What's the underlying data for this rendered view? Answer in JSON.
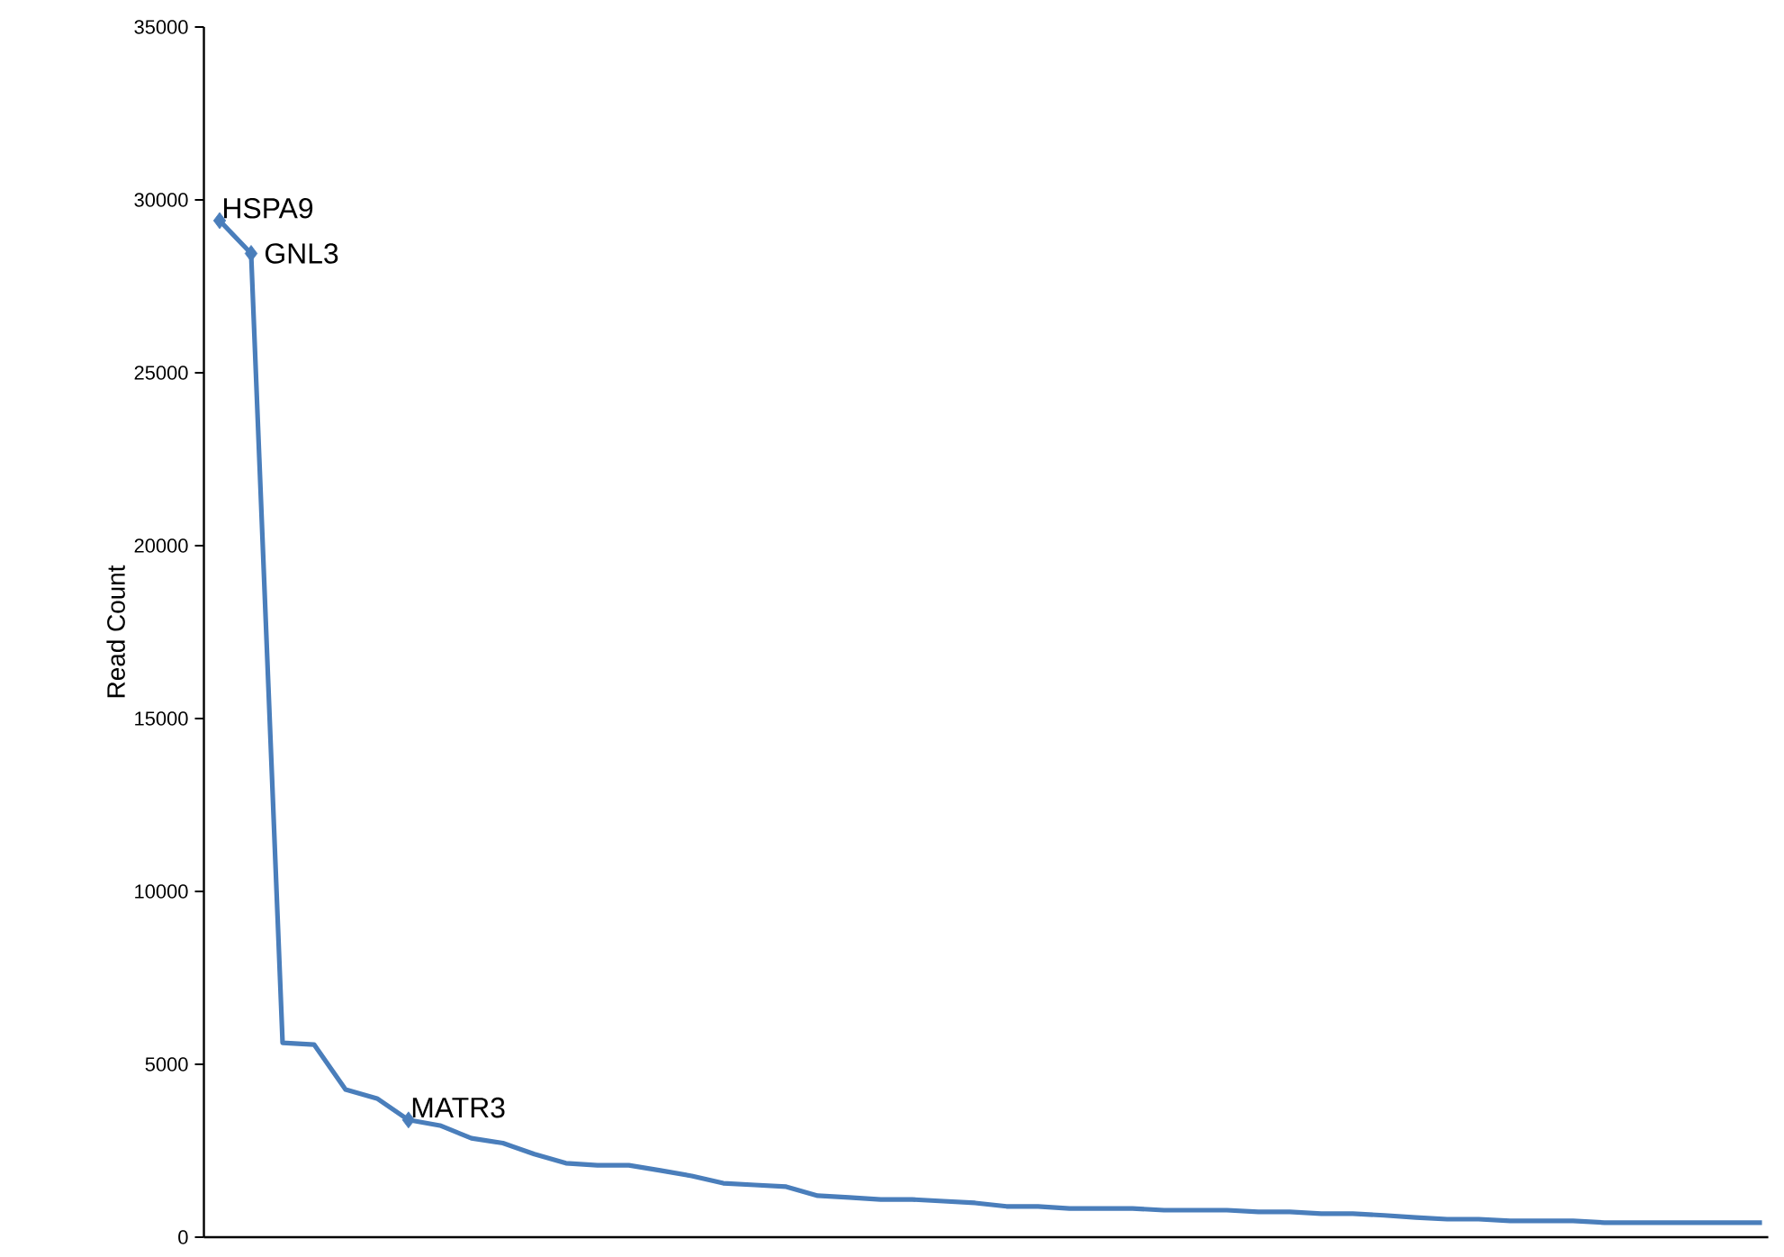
{
  "chart_data": {
    "type": "line",
    "ylabel": "Read Count",
    "color": "#4a7ebb",
    "categories": [
      null,
      null,
      null,
      null,
      null,
      null,
      null,
      null,
      null,
      null,
      null,
      null,
      null,
      null,
      null,
      null,
      null,
      null,
      null,
      null,
      null,
      null,
      null,
      null,
      null,
      null,
      null,
      null,
      null,
      null,
      null,
      null,
      null,
      null,
      null,
      null,
      null,
      null,
      null,
      null,
      null,
      null,
      null,
      null,
      null,
      null,
      null,
      null,
      null,
      null
    ],
    "values": [
      29400,
      28450,
      5620,
      5570,
      4270,
      4010,
      3390,
      3230,
      2860,
      2720,
      2400,
      2140,
      2080,
      2080,
      1930,
      1770,
      1560,
      1510,
      1460,
      1200,
      1150,
      1090,
      1090,
      1040,
      990,
      890,
      890,
      830,
      830,
      830,
      780,
      780,
      780,
      730,
      730,
      680,
      680,
      630,
      570,
      520,
      520,
      470,
      470,
      470,
      420,
      420,
      420,
      420,
      420,
      420
    ],
    "ylim": [
      0,
      35000
    ],
    "yticks": [
      0,
      5000,
      10000,
      15000,
      20000,
      25000,
      30000,
      35000
    ],
    "tick_labels": "y",
    "grid": false,
    "annotations": [
      "HSPA9",
      "GNL3",
      "MATR3"
    ]
  }
}
